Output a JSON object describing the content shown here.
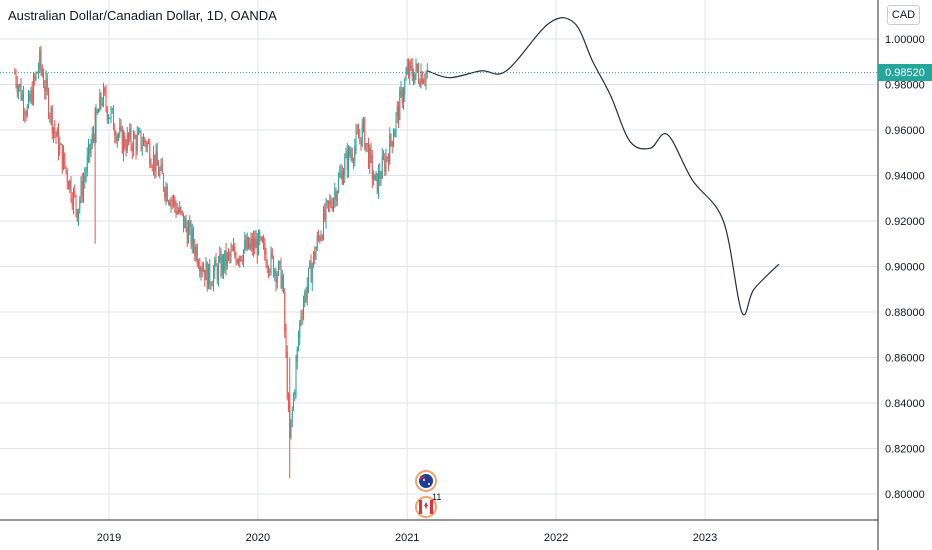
{
  "header": {
    "title": "Australian Dollar/Canadian Dollar, 1D, OANDA",
    "currency_button": "CAD"
  },
  "last_price_label": "0.98520",
  "colors": {
    "up": "#26a69a",
    "down": "#ef5350",
    "grid": "#e0e3eb",
    "axis": "#131722",
    "projection": "#2a2e39",
    "price_line": "#26a69a"
  },
  "icons": [
    "australia-flag-icon",
    "canada-flag-icon"
  ],
  "event_badge": "11",
  "chart_data": {
    "type": "line",
    "title": "Australian Dollar/Canadian Dollar, 1D, OANDA",
    "xlabel": "",
    "ylabel": "",
    "x_ticks": [
      "2019",
      "2020",
      "2021",
      "2022",
      "2023"
    ],
    "y_ticks": [
      "0.80000",
      "0.82000",
      "0.84000",
      "0.86000",
      "0.88000",
      "0.90000",
      "0.92000",
      "0.94000",
      "0.96000",
      "0.98000",
      "1.00000"
    ],
    "ylim": [
      0.79,
      1.012
    ],
    "last_price": 0.9852,
    "grid": true,
    "series": [
      {
        "values_kind": "price (daily candles, approximate path)",
        "points": [
          {
            "x": "2018-05-15",
            "y": 0.985
          },
          {
            "x": "2018-06-15",
            "y": 0.968
          },
          {
            "x": "2018-07-15",
            "y": 0.99
          },
          {
            "x": "2018-08-20",
            "y": 0.96
          },
          {
            "x": "2018-10-15",
            "y": 0.925
          },
          {
            "x": "2018-12-15",
            "y": 0.975
          },
          {
            "x": "2019-02-01",
            "y": 0.955
          },
          {
            "x": "2019-04-01",
            "y": 0.955
          },
          {
            "x": "2019-05-20",
            "y": 0.935
          },
          {
            "x": "2019-07-15",
            "y": 0.915
          },
          {
            "x": "2019-09-01",
            "y": 0.895
          },
          {
            "x": "2019-11-01",
            "y": 0.905
          },
          {
            "x": "2019-12-31",
            "y": 0.91
          },
          {
            "x": "2020-03-01",
            "y": 0.895
          },
          {
            "x": "2020-03-19",
            "y": 0.823
          },
          {
            "x": "2020-04-15",
            "y": 0.88
          },
          {
            "x": "2020-06-01",
            "y": 0.915
          },
          {
            "x": "2020-08-01",
            "y": 0.945
          },
          {
            "x": "2020-09-15",
            "y": 0.96
          },
          {
            "x": "2020-10-15",
            "y": 0.935
          },
          {
            "x": "2020-11-15",
            "y": 0.95
          },
          {
            "x": "2021-01-01",
            "y": 0.985
          },
          {
            "x": "2021-02-20",
            "y": 0.9852
          }
        ]
      },
      {
        "values_kind": "hand-drawn projection",
        "points": [
          {
            "x": "2021-02-20",
            "y": 0.986
          },
          {
            "x": "2021-04-15",
            "y": 0.983
          },
          {
            "x": "2021-07-01",
            "y": 0.986
          },
          {
            "x": "2021-09-01",
            "y": 0.986
          },
          {
            "x": "2021-12-15",
            "y": 1.007
          },
          {
            "x": "2022-02-15",
            "y": 1.007
          },
          {
            "x": "2022-04-01",
            "y": 0.99
          },
          {
            "x": "2022-05-15",
            "y": 0.975
          },
          {
            "x": "2022-07-01",
            "y": 0.955
          },
          {
            "x": "2022-08-20",
            "y": 0.952
          },
          {
            "x": "2022-10-01",
            "y": 0.958
          },
          {
            "x": "2022-12-01",
            "y": 0.938
          },
          {
            "x": "2023-02-15",
            "y": 0.92
          },
          {
            "x": "2023-04-01",
            "y": 0.88
          },
          {
            "x": "2023-05-01",
            "y": 0.89
          },
          {
            "x": "2023-07-01",
            "y": 0.901
          }
        ]
      }
    ]
  }
}
